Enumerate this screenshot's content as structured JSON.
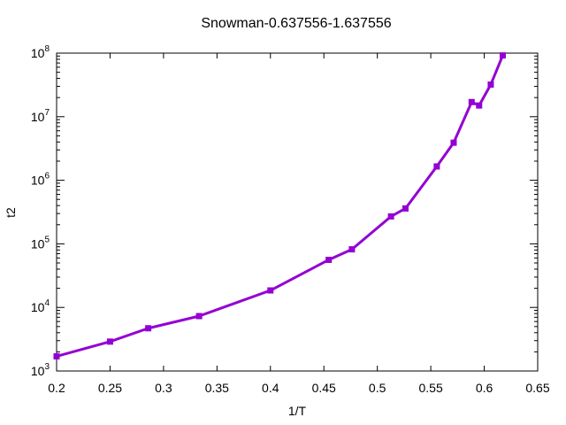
{
  "chart_data": {
    "type": "line",
    "title": "Snowman-0.637556-1.637556",
    "xlabel": "1/T",
    "ylabel": "t2",
    "xlim": [
      0.2,
      0.65
    ],
    "ylim": [
      1000,
      100000000
    ],
    "yscale": "log",
    "grid": false,
    "legend": "none",
    "x_ticks": [
      "0.2",
      "0.25",
      "0.3",
      "0.35",
      "0.4",
      "0.45",
      "0.5",
      "0.55",
      "0.6",
      "0.65"
    ],
    "y_ticks": [
      {
        "base": "10",
        "exp": "3"
      },
      {
        "base": "10",
        "exp": "4"
      },
      {
        "base": "10",
        "exp": "5"
      },
      {
        "base": "10",
        "exp": "6"
      },
      {
        "base": "10",
        "exp": "7"
      },
      {
        "base": "10",
        "exp": "8"
      }
    ],
    "series": [
      {
        "color": "#9400D3",
        "points": [
          {
            "x": 0.2,
            "y": 1700
          },
          {
            "x": 0.25,
            "y": 2900
          },
          {
            "x": 0.2857,
            "y": 4700
          },
          {
            "x": 0.3333,
            "y": 7300
          },
          {
            "x": 0.4,
            "y": 18500
          },
          {
            "x": 0.4545,
            "y": 56000
          },
          {
            "x": 0.4762,
            "y": 82000
          },
          {
            "x": 0.5128,
            "y": 270000
          },
          {
            "x": 0.5263,
            "y": 360000
          },
          {
            "x": 0.5556,
            "y": 1650000
          },
          {
            "x": 0.5714,
            "y": 3900000
          },
          {
            "x": 0.5882,
            "y": 17000000
          },
          {
            "x": 0.5952,
            "y": 15000000
          },
          {
            "x": 0.6061,
            "y": 32000000
          },
          {
            "x": 0.6173,
            "y": 92000000
          }
        ]
      }
    ]
  }
}
